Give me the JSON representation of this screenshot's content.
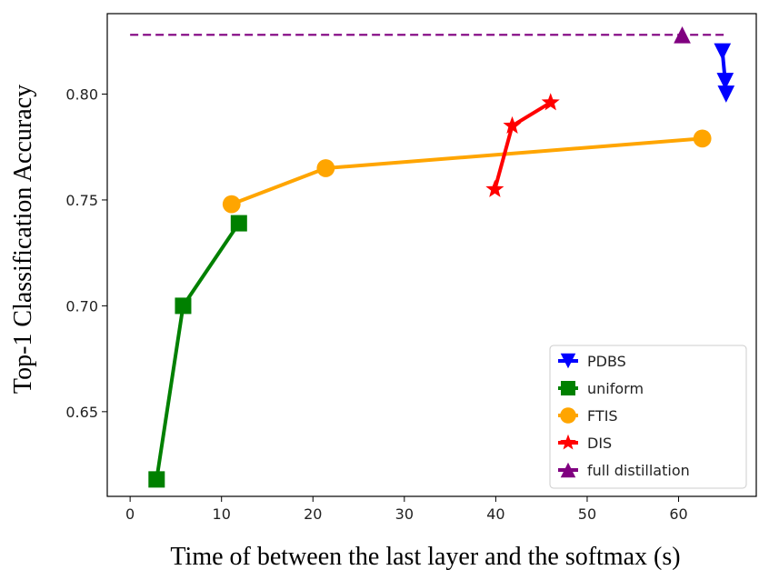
{
  "chart_data": {
    "type": "line",
    "title": "",
    "xlabel": "Time of between the last layer and the softmax (s)",
    "ylabel": "Top-1 Classification Accuracy",
    "xlim": [
      -2.5,
      68.5
    ],
    "ylim": [
      0.61,
      0.838
    ],
    "xticks": [
      0,
      10,
      20,
      30,
      40,
      50,
      60
    ],
    "xtick_labels": [
      "0",
      "10",
      "20",
      "30",
      "40",
      "50",
      "60"
    ],
    "yticks": [
      0.65,
      0.7,
      0.75,
      0.8
    ],
    "ytick_labels": [
      "0.65",
      "0.70",
      "0.75",
      "0.80"
    ],
    "grid": false,
    "legend_position": "bottom-right",
    "series": [
      {
        "name": "PDBS",
        "color": "#0000ff",
        "marker": "triangle-down",
        "linestyle": "solid",
        "x": [
          64.8,
          65.1,
          65.2
        ],
        "y": [
          0.82,
          0.806,
          0.8
        ]
      },
      {
        "name": "uniform",
        "color": "#008000",
        "marker": "square",
        "linestyle": "solid",
        "x": [
          2.9,
          5.8,
          11.9
        ],
        "y": [
          0.618,
          0.7,
          0.739
        ]
      },
      {
        "name": "FTIS",
        "color": "#ffa500",
        "marker": "circle",
        "linestyle": "solid",
        "x": [
          11.1,
          21.4,
          62.6
        ],
        "y": [
          0.748,
          0.765,
          0.779
        ]
      },
      {
        "name": "DIS",
        "color": "#ff0000",
        "marker": "star",
        "linestyle": "solid",
        "x": [
          39.9,
          41.8,
          46.0
        ],
        "y": [
          0.755,
          0.785,
          0.796
        ]
      },
      {
        "name": "full distillation",
        "color": "#800080",
        "marker": "triangle-up",
        "linestyle": "dashed",
        "x": [
          0,
          60.4,
          65.0
        ],
        "y": [
          0.828,
          0.828,
          0.828
        ],
        "marker_x": [
          60.4
        ]
      }
    ]
  }
}
